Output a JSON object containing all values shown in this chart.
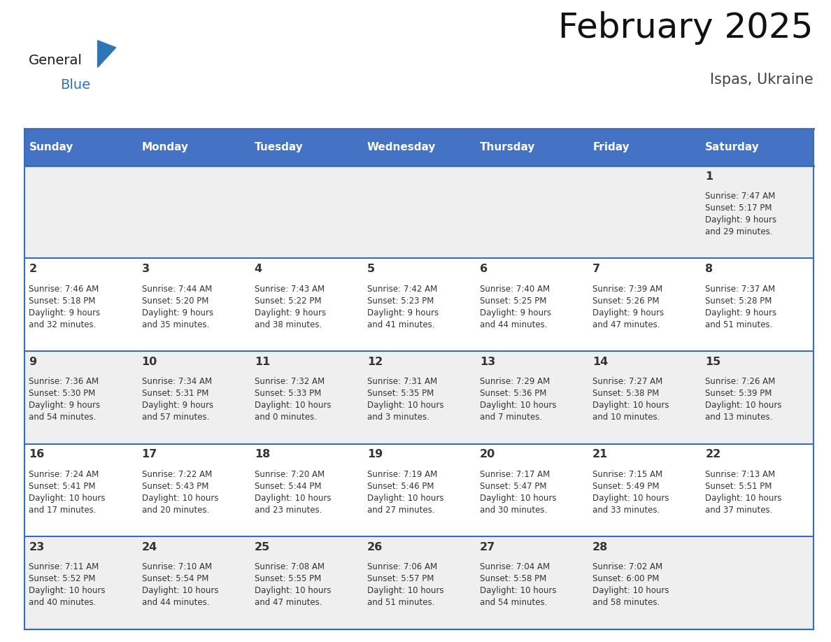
{
  "title": "February 2025",
  "subtitle": "Ispas, Ukraine",
  "days_of_week": [
    "Sunday",
    "Monday",
    "Tuesday",
    "Wednesday",
    "Thursday",
    "Friday",
    "Saturday"
  ],
  "header_bg": "#4472C4",
  "header_text": "#FFFFFF",
  "cell_bg_odd": "#EFEFEF",
  "cell_bg_even": "#FFFFFF",
  "border_color": "#3A6DB5",
  "day_number_color": "#333333",
  "cell_text_color": "#333333",
  "logo_general_color": "#1a1a1a",
  "logo_blue_color": "#2E75B6",
  "calendar_data": [
    [
      null,
      null,
      null,
      null,
      null,
      null,
      {
        "day": 1,
        "sunrise": "7:47 AM",
        "sunset": "5:17 PM",
        "daylight": "9 hours\nand 29 minutes."
      }
    ],
    [
      {
        "day": 2,
        "sunrise": "7:46 AM",
        "sunset": "5:18 PM",
        "daylight": "9 hours\nand 32 minutes."
      },
      {
        "day": 3,
        "sunrise": "7:44 AM",
        "sunset": "5:20 PM",
        "daylight": "9 hours\nand 35 minutes."
      },
      {
        "day": 4,
        "sunrise": "7:43 AM",
        "sunset": "5:22 PM",
        "daylight": "9 hours\nand 38 minutes."
      },
      {
        "day": 5,
        "sunrise": "7:42 AM",
        "sunset": "5:23 PM",
        "daylight": "9 hours\nand 41 minutes."
      },
      {
        "day": 6,
        "sunrise": "7:40 AM",
        "sunset": "5:25 PM",
        "daylight": "9 hours\nand 44 minutes."
      },
      {
        "day": 7,
        "sunrise": "7:39 AM",
        "sunset": "5:26 PM",
        "daylight": "9 hours\nand 47 minutes."
      },
      {
        "day": 8,
        "sunrise": "7:37 AM",
        "sunset": "5:28 PM",
        "daylight": "9 hours\nand 51 minutes."
      }
    ],
    [
      {
        "day": 9,
        "sunrise": "7:36 AM",
        "sunset": "5:30 PM",
        "daylight": "9 hours\nand 54 minutes."
      },
      {
        "day": 10,
        "sunrise": "7:34 AM",
        "sunset": "5:31 PM",
        "daylight": "9 hours\nand 57 minutes."
      },
      {
        "day": 11,
        "sunrise": "7:32 AM",
        "sunset": "5:33 PM",
        "daylight": "10 hours\nand 0 minutes."
      },
      {
        "day": 12,
        "sunrise": "7:31 AM",
        "sunset": "5:35 PM",
        "daylight": "10 hours\nand 3 minutes."
      },
      {
        "day": 13,
        "sunrise": "7:29 AM",
        "sunset": "5:36 PM",
        "daylight": "10 hours\nand 7 minutes."
      },
      {
        "day": 14,
        "sunrise": "7:27 AM",
        "sunset": "5:38 PM",
        "daylight": "10 hours\nand 10 minutes."
      },
      {
        "day": 15,
        "sunrise": "7:26 AM",
        "sunset": "5:39 PM",
        "daylight": "10 hours\nand 13 minutes."
      }
    ],
    [
      {
        "day": 16,
        "sunrise": "7:24 AM",
        "sunset": "5:41 PM",
        "daylight": "10 hours\nand 17 minutes."
      },
      {
        "day": 17,
        "sunrise": "7:22 AM",
        "sunset": "5:43 PM",
        "daylight": "10 hours\nand 20 minutes."
      },
      {
        "day": 18,
        "sunrise": "7:20 AM",
        "sunset": "5:44 PM",
        "daylight": "10 hours\nand 23 minutes."
      },
      {
        "day": 19,
        "sunrise": "7:19 AM",
        "sunset": "5:46 PM",
        "daylight": "10 hours\nand 27 minutes."
      },
      {
        "day": 20,
        "sunrise": "7:17 AM",
        "sunset": "5:47 PM",
        "daylight": "10 hours\nand 30 minutes."
      },
      {
        "day": 21,
        "sunrise": "7:15 AM",
        "sunset": "5:49 PM",
        "daylight": "10 hours\nand 33 minutes."
      },
      {
        "day": 22,
        "sunrise": "7:13 AM",
        "sunset": "5:51 PM",
        "daylight": "10 hours\nand 37 minutes."
      }
    ],
    [
      {
        "day": 23,
        "sunrise": "7:11 AM",
        "sunset": "5:52 PM",
        "daylight": "10 hours\nand 40 minutes."
      },
      {
        "day": 24,
        "sunrise": "7:10 AM",
        "sunset": "5:54 PM",
        "daylight": "10 hours\nand 44 minutes."
      },
      {
        "day": 25,
        "sunrise": "7:08 AM",
        "sunset": "5:55 PM",
        "daylight": "10 hours\nand 47 minutes."
      },
      {
        "day": 26,
        "sunrise": "7:06 AM",
        "sunset": "5:57 PM",
        "daylight": "10 hours\nand 51 minutes."
      },
      {
        "day": 27,
        "sunrise": "7:04 AM",
        "sunset": "5:58 PM",
        "daylight": "10 hours\nand 54 minutes."
      },
      {
        "day": 28,
        "sunrise": "7:02 AM",
        "sunset": "6:00 PM",
        "daylight": "10 hours\nand 58 minutes."
      },
      null
    ]
  ]
}
